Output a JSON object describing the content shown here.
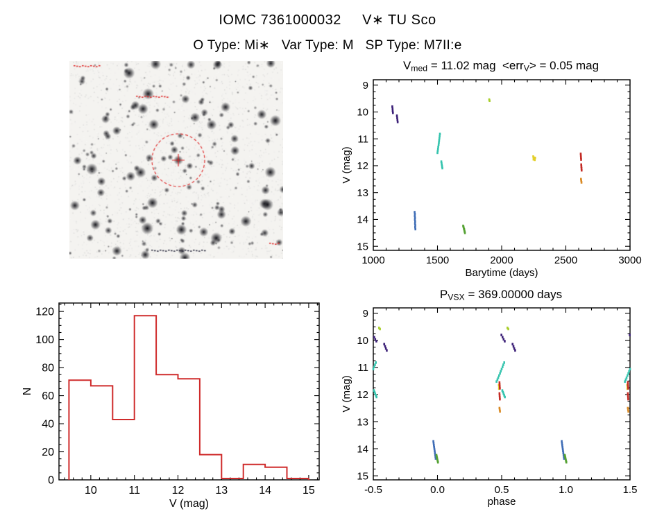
{
  "page": {
    "title": "IOMC 7361000032     V∗ TU Sco",
    "subtitle": "O Type: Mi∗   Var Type: M   SP Type: M7II:e",
    "background": "#ffffff",
    "text_color": "#000000"
  },
  "finder_chart": {
    "marker_color": "#e03030",
    "description": "inverted grayscale star field with dashed red circle and crosshair marking the target"
  },
  "chart_data": [
    {
      "id": "lightcurve",
      "type": "scatter",
      "title_parts": [
        [
          "V",
          ""
        ],
        [
          "med",
          "sub"
        ],
        [
          " = 11.02 mag  <err",
          ""
        ],
        [
          "V",
          "sub"
        ],
        [
          "> = 0.05 mag",
          ""
        ]
      ],
      "xlabel": "Barytime (days)",
      "ylabel": "V (mag)",
      "xlim": [
        1000,
        3000
      ],
      "ylim": [
        8.8,
        15.15
      ],
      "invert_y": true,
      "xticks": [
        1000,
        1500,
        2000,
        2500,
        3000
      ],
      "xtick_labels": [
        "1000",
        "1500",
        "2000",
        "2500",
        "3000"
      ],
      "yticks": [
        9,
        10,
        11,
        12,
        13,
        14,
        15
      ],
      "ytick_labels": [
        "9",
        "10",
        "11",
        "12",
        "13",
        "14",
        "15"
      ],
      "xminor": 100,
      "yminor": 0.25,
      "grid": false,
      "series": [
        {
          "name": "epoch-purple",
          "color": "#3b1f77",
          "points": [
            [
              1148,
              9.8
            ],
            [
              1150,
              9.88
            ],
            [
              1151,
              9.96
            ],
            [
              1153,
              10.03
            ],
            [
              1184,
              10.14
            ],
            [
              1186,
              10.22
            ],
            [
              1188,
              10.3
            ],
            [
              1190,
              10.37
            ]
          ]
        },
        {
          "name": "epoch-blue",
          "color": "#3f6db6",
          "points": [
            [
              1322,
              13.73
            ],
            [
              1324,
              13.8
            ],
            [
              1323,
              13.87
            ],
            [
              1325,
              13.94
            ],
            [
              1324,
              14.01
            ],
            [
              1326,
              14.08
            ],
            [
              1325,
              14.15
            ],
            [
              1327,
              14.22
            ],
            [
              1326,
              14.29
            ],
            [
              1328,
              14.36
            ]
          ]
        },
        {
          "name": "epoch-cyan",
          "color": "#35c4ae",
          "points": [
            [
              1500,
              11.52
            ],
            [
              1502,
              11.45
            ],
            [
              1504,
              11.38
            ],
            [
              1506,
              11.3
            ],
            [
              1509,
              11.22
            ],
            [
              1511,
              11.14
            ],
            [
              1513,
              11.06
            ],
            [
              1515,
              10.98
            ],
            [
              1517,
              10.9
            ],
            [
              1519,
              10.82
            ],
            [
              1530,
              11.85
            ],
            [
              1532,
              11.91
            ],
            [
              1534,
              11.97
            ],
            [
              1536,
              12.03
            ],
            [
              1538,
              12.09
            ]
          ]
        },
        {
          "name": "epoch-green",
          "color": "#55a233",
          "points": [
            [
              1700,
              14.24
            ],
            [
              1703,
              14.28
            ],
            [
              1705,
              14.33
            ],
            [
              1708,
              14.37
            ],
            [
              1710,
              14.42
            ],
            [
              1712,
              14.46
            ],
            [
              1714,
              14.5
            ]
          ]
        },
        {
          "name": "epoch-chartreuse",
          "color": "#a9cf2c",
          "points": [
            [
              1903,
              9.54
            ],
            [
              1906,
              9.58
            ]
          ]
        },
        {
          "name": "epoch-yellow",
          "color": "#e3cf2a",
          "points": [
            [
              2246,
              11.66
            ],
            [
              2248,
              11.76
            ],
            [
              2250,
              11.7
            ],
            [
              2254,
              11.74
            ],
            [
              2258,
              11.78
            ],
            [
              2261,
              11.71
            ]
          ]
        },
        {
          "name": "epoch-red",
          "color": "#c32a24",
          "points": [
            [
              2616,
              11.56
            ],
            [
              2617,
              11.63
            ],
            [
              2618,
              11.7
            ],
            [
              2619,
              11.77
            ],
            [
              2620,
              11.96
            ],
            [
              2621,
              12.03
            ],
            [
              2622,
              12.1
            ],
            [
              2623,
              12.17
            ]
          ]
        },
        {
          "name": "epoch-orange",
          "color": "#d98a25",
          "points": [
            [
              2618,
              12.5
            ],
            [
              2620,
              12.56
            ],
            [
              2622,
              12.62
            ]
          ]
        }
      ]
    },
    {
      "id": "histogram",
      "type": "histogram",
      "title_parts": [],
      "xlabel": "V (mag)",
      "ylabel": "N",
      "xlim": [
        9.27,
        15.24
      ],
      "ylim": [
        0,
        126
      ],
      "invert_y": false,
      "xticks": [
        10,
        11,
        12,
        13,
        14,
        15
      ],
      "xtick_labels": [
        "10",
        "11",
        "12",
        "13",
        "14",
        "15"
      ],
      "yticks": [
        0,
        20,
        40,
        60,
        80,
        100,
        120
      ],
      "ytick_labels": [
        "0",
        "20",
        "40",
        "60",
        "80",
        "100",
        "120"
      ],
      "xminor": 0.2,
      "yminor": 5,
      "grid": false,
      "color": "#cf2b2b",
      "bin_edges": [
        9.5,
        10.0,
        10.5,
        11.0,
        11.5,
        12.0,
        12.5,
        13.0,
        13.5,
        14.0,
        14.5,
        15.0
      ],
      "counts": [
        71,
        67,
        43,
        117,
        75,
        72,
        18,
        1,
        11,
        9,
        1
      ]
    },
    {
      "id": "phase-folded",
      "type": "scatter",
      "title_parts": [
        [
          "P",
          ""
        ],
        [
          "VSX",
          "sub"
        ],
        [
          " = 369.00000 days",
          ""
        ]
      ],
      "xlabel": "phase",
      "ylabel": "V (mag)",
      "xlim": [
        -0.5,
        1.5
      ],
      "ylim": [
        8.8,
        15.15
      ],
      "invert_y": true,
      "xticks": [
        -0.5,
        0.0,
        0.5,
        1.0,
        1.5
      ],
      "xtick_labels": [
        "-0.5",
        "0.0",
        "0.5",
        "1.0",
        "1.5"
      ],
      "yticks": [
        9,
        10,
        11,
        12,
        13,
        14,
        15
      ],
      "ytick_labels": [
        "9",
        "10",
        "11",
        "12",
        "13",
        "14",
        "15"
      ],
      "xminor": 0.1,
      "yminor": 0.25,
      "grid": false,
      "series": [
        {
          "name": "epoch-purple",
          "color": "#3b1f77",
          "points": [
            [
              0.498,
              9.8
            ],
            [
              0.507,
              9.88
            ],
            [
              0.515,
              9.96
            ],
            [
              0.524,
              10.03
            ],
            [
              0.585,
              10.14
            ],
            [
              0.592,
              10.22
            ],
            [
              0.598,
              10.3
            ],
            [
              0.605,
              10.37
            ],
            [
              -0.493,
              9.88
            ],
            [
              -0.485,
              9.96
            ],
            [
              -0.476,
              10.03
            ],
            [
              -0.415,
              10.14
            ],
            [
              -0.408,
              10.22
            ],
            [
              -0.402,
              10.3
            ],
            [
              -0.395,
              10.37
            ],
            [
              1.498,
              9.8
            ]
          ]
        },
        {
          "name": "epoch-blue",
          "color": "#3f6db6",
          "points": [
            [
              0.968,
              13.73
            ],
            [
              0.97,
              13.8
            ],
            [
              0.972,
              13.87
            ],
            [
              0.974,
              13.94
            ],
            [
              0.976,
              14.01
            ],
            [
              0.978,
              14.08
            ],
            [
              0.98,
              14.15
            ],
            [
              0.982,
              14.22
            ],
            [
              0.984,
              14.29
            ],
            [
              0.986,
              14.36
            ],
            [
              -0.032,
              13.73
            ],
            [
              -0.03,
              13.8
            ],
            [
              -0.028,
              13.87
            ],
            [
              -0.026,
              13.94
            ],
            [
              -0.024,
              14.01
            ],
            [
              -0.022,
              14.08
            ],
            [
              -0.02,
              14.15
            ],
            [
              -0.018,
              14.22
            ],
            [
              -0.016,
              14.29
            ],
            [
              -0.014,
              14.36
            ]
          ]
        },
        {
          "name": "epoch-cyan",
          "color": "#35c4ae",
          "points": [
            [
              0.46,
              11.52
            ],
            [
              0.467,
              11.45
            ],
            [
              0.473,
              11.38
            ],
            [
              0.48,
              11.3
            ],
            [
              0.487,
              11.22
            ],
            [
              0.493,
              11.14
            ],
            [
              0.5,
              11.06
            ],
            [
              0.507,
              10.98
            ],
            [
              0.513,
              10.9
            ],
            [
              0.52,
              10.82
            ],
            [
              0.505,
              11.85
            ],
            [
              0.51,
              11.91
            ],
            [
              0.515,
              11.97
            ],
            [
              0.52,
              12.03
            ],
            [
              0.525,
              12.09
            ],
            [
              1.46,
              11.52
            ],
            [
              1.467,
              11.45
            ],
            [
              1.473,
              11.38
            ],
            [
              1.48,
              11.3
            ],
            [
              1.487,
              11.22
            ],
            [
              1.493,
              11.14
            ],
            [
              1.5,
              11.06
            ],
            [
              -0.5,
              11.06
            ],
            [
              -0.493,
              10.98
            ],
            [
              -0.487,
              10.9
            ],
            [
              -0.48,
              10.82
            ],
            [
              -0.495,
              11.85
            ],
            [
              -0.49,
              11.91
            ],
            [
              -0.485,
              11.97
            ],
            [
              -0.48,
              12.03
            ],
            [
              -0.475,
              12.09
            ]
          ]
        },
        {
          "name": "epoch-green",
          "color": "#55a233",
          "points": [
            [
              0.992,
              14.24
            ],
            [
              0.994,
              14.28
            ],
            [
              0.996,
              14.33
            ],
            [
              0.998,
              14.37
            ],
            [
              1.0,
              14.42
            ],
            [
              1.002,
              14.46
            ],
            [
              1.004,
              14.5
            ],
            [
              -0.008,
              14.24
            ],
            [
              -0.006,
              14.28
            ],
            [
              -0.004,
              14.33
            ],
            [
              -0.002,
              14.37
            ],
            [
              0.0,
              14.42
            ],
            [
              0.002,
              14.46
            ],
            [
              0.004,
              14.5
            ]
          ]
        },
        {
          "name": "epoch-chartreuse",
          "color": "#a9cf2c",
          "points": [
            [
              0.545,
              9.54
            ],
            [
              0.552,
              9.58
            ],
            [
              -0.455,
              9.54
            ],
            [
              -0.448,
              9.58
            ]
          ]
        },
        {
          "name": "epoch-yellow",
          "color": "#e3cf2a",
          "points": [
            [
              0.478,
              11.66
            ],
            [
              0.481,
              11.7
            ],
            [
              0.484,
              11.74
            ],
            [
              0.479,
              11.78
            ],
            [
              0.483,
              11.62
            ],
            [
              1.478,
              11.66
            ],
            [
              1.481,
              11.7
            ],
            [
              1.484,
              11.74
            ],
            [
              1.479,
              11.78
            ]
          ]
        },
        {
          "name": "epoch-red",
          "color": "#c32a24",
          "points": [
            [
              0.483,
              11.56
            ],
            [
              0.484,
              11.63
            ],
            [
              0.485,
              11.7
            ],
            [
              0.486,
              11.77
            ],
            [
              0.483,
              11.96
            ],
            [
              0.484,
              12.03
            ],
            [
              0.485,
              12.1
            ],
            [
              0.486,
              12.17
            ],
            [
              1.483,
              11.56
            ],
            [
              1.484,
              11.63
            ],
            [
              1.485,
              11.7
            ],
            [
              1.486,
              11.77
            ],
            [
              1.483,
              11.96
            ],
            [
              1.484,
              12.03
            ],
            [
              1.485,
              12.1
            ],
            [
              1.486,
              12.17
            ]
          ]
        },
        {
          "name": "epoch-orange",
          "color": "#d98a25",
          "points": [
            [
              0.483,
              12.5
            ],
            [
              0.485,
              12.56
            ],
            [
              0.487,
              12.62
            ],
            [
              1.483,
              12.5
            ],
            [
              1.485,
              12.56
            ],
            [
              1.487,
              12.62
            ]
          ]
        }
      ]
    }
  ]
}
